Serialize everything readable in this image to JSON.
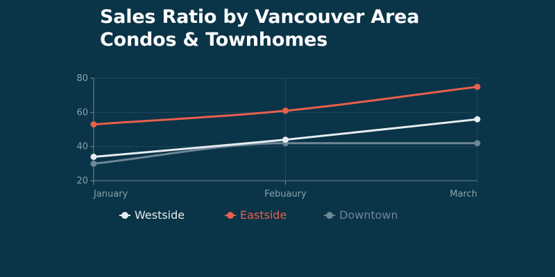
{
  "title": {
    "line1": "Sales Ratio by Vancouver Area",
    "line2": "Condos & Townhomes"
  },
  "colors": {
    "background": "#0a3447",
    "grid": "#1d4a5b",
    "axis": "#6c8a96",
    "tick_text": "#8aa3ad"
  },
  "chart_data": {
    "type": "line",
    "title": "Sales Ratio by Vancouver Area Condos & Townhomes",
    "categories": [
      "January",
      "Febuaury",
      "March"
    ],
    "ylim": [
      20,
      80
    ],
    "yticks": [
      20,
      40,
      60,
      80
    ],
    "grid": true,
    "legend_position": "bottom-left",
    "series": [
      {
        "name": "Westside",
        "color": "#e6ecef",
        "values": [
          34,
          44,
          56
        ]
      },
      {
        "name": "Eastside",
        "color": "#e8604c",
        "values": [
          53,
          61,
          75
        ]
      },
      {
        "name": "Downtown",
        "color": "#6e8797",
        "values": [
          30,
          42,
          42
        ]
      }
    ]
  }
}
